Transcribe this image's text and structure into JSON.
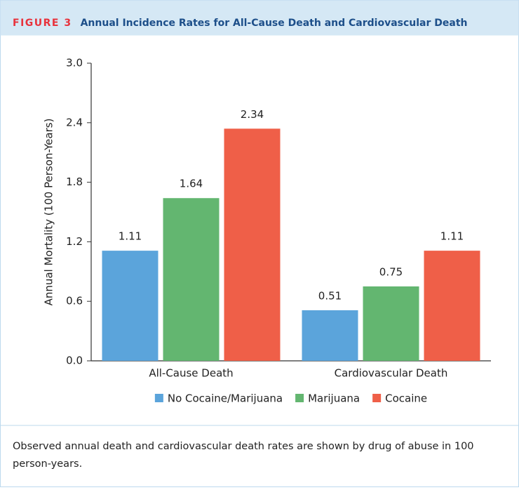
{
  "figure_label": "FIGURE 3",
  "chart_data": {
    "type": "bar",
    "title": "Annual Incidence Rates for All-Cause Death and Cardiovascular Death",
    "ylabel": "Annual Mortality (100 Person-Years)",
    "categories": [
      "All-Cause Death",
      "Cardiovascular Death"
    ],
    "series": [
      {
        "name": "No Cocaine/Marijuana",
        "color": "#5ba4db",
        "values": [
          1.11,
          0.51
        ]
      },
      {
        "name": "Marijuana",
        "color": "#63b670",
        "values": [
          1.64,
          0.75
        ]
      },
      {
        "name": "Cocaine",
        "color": "#ef5f48",
        "values": [
          2.34,
          1.11
        ]
      }
    ],
    "ylim": [
      0,
      3
    ],
    "yticks": [
      {
        "value": 0,
        "label": "0.0"
      },
      0.6,
      1.2,
      1.8,
      2.4,
      {
        "value": 3,
        "label": "3.0"
      }
    ],
    "grid": false,
    "legend": "bottom"
  },
  "caption": "Observed annual death and cardiovascular death rates are shown by drug of abuse in 100 person-years."
}
